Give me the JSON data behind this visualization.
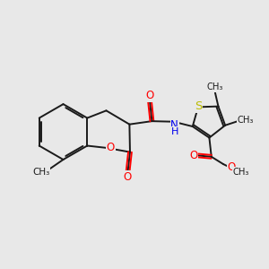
{
  "background_color": "#e8e8e8",
  "bond_color": "#1a1a1a",
  "bond_width": 1.4,
  "font_size": 8.5,
  "atom_colors": {
    "O": "#ff0000",
    "N": "#0000ee",
    "S": "#bbbb00",
    "C": "#1a1a1a",
    "H": "#1a1a1a"
  },
  "figsize": [
    3.0,
    3.0
  ],
  "dpi": 100,
  "xlim": [
    0,
    10
  ],
  "ylim": [
    0,
    10
  ]
}
